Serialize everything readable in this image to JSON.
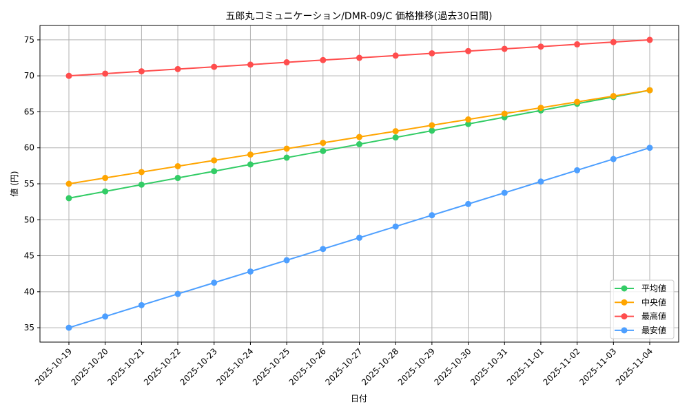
{
  "chart_data": {
    "type": "line",
    "title": "五郎丸コミュニケーション/DMR-09/C 価格推移(過去30日間)",
    "xlabel": "日付",
    "ylabel": "値 (円)",
    "ylim": [
      33,
      77
    ],
    "yticks": [
      35,
      40,
      45,
      50,
      55,
      60,
      65,
      70,
      75
    ],
    "grid": true,
    "legend_position": "lower right",
    "categories": [
      "2025-10-19",
      "2025-10-20",
      "2025-10-21",
      "2025-10-22",
      "2025-10-23",
      "2025-10-24",
      "2025-10-25",
      "2025-10-26",
      "2025-10-27",
      "2025-10-28",
      "2025-10-29",
      "2025-10-30",
      "2025-10-31",
      "2025-11-01",
      "2025-11-02",
      "2025-11-03",
      "2025-11-04"
    ],
    "series": [
      {
        "name": "平均値",
        "color": "#33cc66",
        "values": [
          53.0,
          53.94,
          54.88,
          55.81,
          56.75,
          57.69,
          58.63,
          59.56,
          60.5,
          61.44,
          62.38,
          63.31,
          64.25,
          65.19,
          66.13,
          67.06,
          68.0
        ]
      },
      {
        "name": "中央値",
        "color": "#ffa500",
        "values": [
          55.0,
          55.81,
          56.63,
          57.44,
          58.25,
          59.06,
          59.88,
          60.69,
          61.5,
          62.31,
          63.13,
          63.94,
          64.75,
          65.56,
          66.38,
          67.19,
          68.0
        ]
      },
      {
        "name": "最高値",
        "color": "#ff4d4d",
        "values": [
          70.0,
          70.31,
          70.63,
          70.94,
          71.25,
          71.56,
          71.88,
          72.19,
          72.5,
          72.81,
          73.13,
          73.44,
          73.75,
          74.06,
          74.38,
          74.69,
          75.0
        ]
      },
      {
        "name": "最安値",
        "color": "#4d9fff",
        "values": [
          35.0,
          36.56,
          38.13,
          39.69,
          41.25,
          42.81,
          44.38,
          45.94,
          47.5,
          49.06,
          50.63,
          52.19,
          53.75,
          55.31,
          56.88,
          58.44,
          60.0
        ]
      }
    ]
  },
  "colors": {
    "grid": "#b0b0b0",
    "axis": "#000000"
  }
}
